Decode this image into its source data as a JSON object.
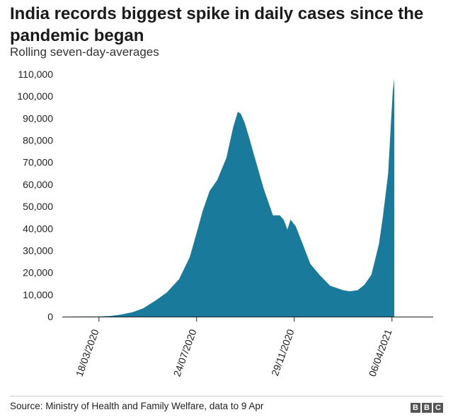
{
  "header": {
    "title": "India records biggest spike in daily cases since the pandemic began",
    "subtitle": "Rolling seven-day-averages"
  },
  "footer": {
    "source": "Source: Ministry of Health and Family Welfare, data to 9 Apr",
    "logo_letters": [
      "B",
      "B",
      "C"
    ]
  },
  "colors": {
    "series": "#1a7a9c",
    "axis": "#222222",
    "footer_rule": "#cfcfcf"
  },
  "chart_data": {
    "type": "area",
    "title": "India records biggest spike in daily cases since the pandemic began",
    "subtitle": "Rolling seven-day-averages",
    "ylim": [
      0,
      110000
    ],
    "yticks": [
      0,
      10000,
      20000,
      30000,
      40000,
      50000,
      60000,
      70000,
      80000,
      90000,
      100000,
      110000
    ],
    "ytick_labels": [
      "0",
      "10,000",
      "20,000",
      "30,000",
      "40,000",
      "50,000",
      "60,000",
      "70,000",
      "80,000",
      "90,000",
      "100,000",
      "110,000"
    ],
    "xlim": [
      "2020-01-30",
      "2021-05-30"
    ],
    "xticks": [
      "2020-03-18",
      "2020-07-24",
      "2020-11-29",
      "2021-04-06"
    ],
    "xtick_labels": [
      "18/03/2020",
      "24/07/2020",
      "29/11/2020",
      "06/04/2021"
    ],
    "grid": false,
    "legend": "none",
    "series": [
      {
        "x": [
          "2020-01-30",
          "2020-03-18",
          "2020-04-01",
          "2020-04-15",
          "2020-05-01",
          "2020-05-15",
          "2020-06-01",
          "2020-06-15",
          "2020-07-01",
          "2020-07-15",
          "2020-07-24",
          "2020-08-01",
          "2020-08-10",
          "2020-08-20",
          "2020-09-01",
          "2020-09-10",
          "2020-09-16",
          "2020-09-20",
          "2020-09-25",
          "2020-10-01",
          "2020-10-10",
          "2020-10-20",
          "2020-11-01",
          "2020-11-10",
          "2020-11-15",
          "2020-11-20",
          "2020-11-24",
          "2020-12-01",
          "2020-12-10",
          "2020-12-20",
          "2021-01-01",
          "2021-01-15",
          "2021-02-01",
          "2021-02-10",
          "2021-02-20",
          "2021-03-01",
          "2021-03-10",
          "2021-03-20",
          "2021-03-25",
          "2021-04-01",
          "2021-04-05",
          "2021-04-07",
          "2021-04-09"
        ],
        "y": [
          0,
          100,
          300,
          900,
          2000,
          3800,
          7500,
          11000,
          17000,
          27000,
          38000,
          48000,
          57000,
          62000,
          72000,
          86000,
          93000,
          92000,
          88000,
          81000,
          70000,
          58000,
          46000,
          46000,
          44000,
          39500,
          44000,
          41000,
          33000,
          24000,
          19000,
          14000,
          12000,
          11500,
          12000,
          14500,
          19000,
          33000,
          45000,
          65000,
          90000,
          102000,
          108000
        ]
      }
    ]
  }
}
